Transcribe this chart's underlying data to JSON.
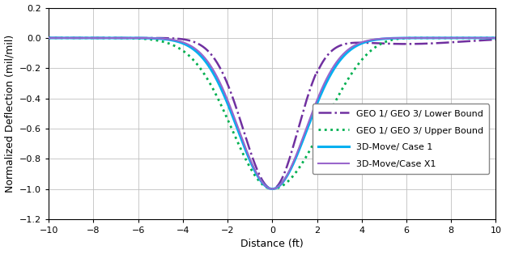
{
  "xlim": [
    -10,
    10
  ],
  "ylim": [
    -1.2,
    0.2
  ],
  "xticks": [
    -10,
    -8,
    -6,
    -4,
    -2,
    0,
    2,
    4,
    6,
    8,
    10
  ],
  "yticks": [
    -1.2,
    -1.0,
    -0.8,
    -0.6,
    -0.4,
    -0.2,
    0.0,
    0.2
  ],
  "xlabel": "Distance (ft)",
  "ylabel": "Normalized Deflection (mil/mil)",
  "grid_color": "#c0c0c0",
  "background_color": "#ffffff",
  "color_lower": "#7030a0",
  "color_upper": "#00b050",
  "color_case1": "#00b0f0",
  "color_casex1": "#9966cc",
  "lw_lower": 1.8,
  "lw_upper": 2.0,
  "lw_case1": 2.2,
  "lw_casex1": 1.5,
  "legend_fontsize": 8,
  "tick_fontsize": 8,
  "axis_fontsize": 9
}
